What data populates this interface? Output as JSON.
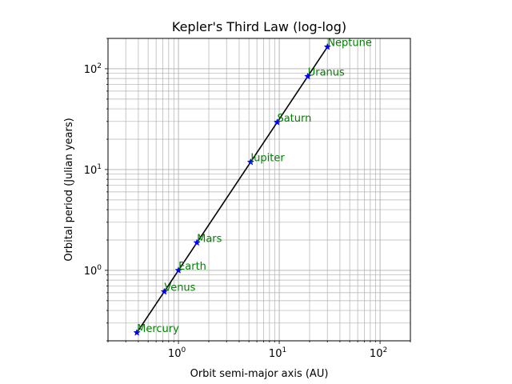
{
  "chart_data": {
    "type": "line",
    "title": "Kepler's Third Law (log-log)",
    "xlabel": "Orbit semi-major axis (AU)",
    "ylabel": "Orbital period (Julian years)",
    "xscale": "log",
    "yscale": "log",
    "xlim": [
      0.2,
      200
    ],
    "ylim": [
      0.2,
      200
    ],
    "grid": "major-and-minor",
    "x_ticks": [
      {
        "base": "10",
        "exp": "0",
        "value": 1
      },
      {
        "base": "10",
        "exp": "1",
        "value": 10
      },
      {
        "base": "10",
        "exp": "2",
        "value": 100
      }
    ],
    "y_ticks": [
      {
        "base": "10",
        "exp": "0",
        "value": 1
      },
      {
        "base": "10",
        "exp": "1",
        "value": 10
      },
      {
        "base": "10",
        "exp": "2",
        "value": 100
      }
    ],
    "series": [
      {
        "line_color": "#000000",
        "marker_color": "#0000ff",
        "marker": "star",
        "label_color": "#008000",
        "points": [
          {
            "label": "Mercury",
            "x": 0.387,
            "y": 0.241
          },
          {
            "label": "Venus",
            "x": 0.723,
            "y": 0.615
          },
          {
            "label": "Earth",
            "x": 1.0,
            "y": 1.0
          },
          {
            "label": "Mars",
            "x": 1.524,
            "y": 1.881
          },
          {
            "label": "Jupiter",
            "x": 5.203,
            "y": 11.86
          },
          {
            "label": "Saturn",
            "x": 9.537,
            "y": 29.46
          },
          {
            "label": "Uranus",
            "x": 19.19,
            "y": 84.01
          },
          {
            "label": "Neptune",
            "x": 30.07,
            "y": 164.8
          }
        ]
      }
    ]
  }
}
